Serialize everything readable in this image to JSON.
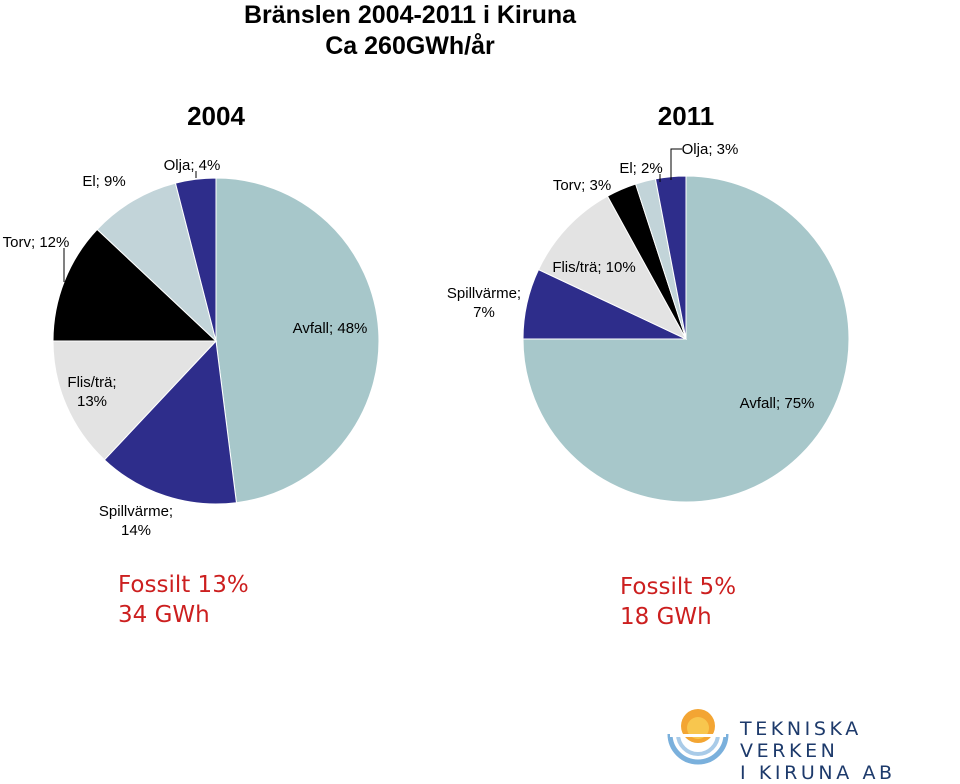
{
  "title": {
    "line1": "Bränslen 2004-2011 i Kiruna",
    "line2": "Ca 260GWh/år"
  },
  "chart_data": [
    {
      "type": "pie",
      "title": "2004",
      "slices": [
        {
          "label": "Avfall; 48%",
          "name": "Avfall",
          "value": 48,
          "color": "#a7c7ca"
        },
        {
          "label": "Spillvärme; 14%",
          "name": "Spillvärme",
          "value": 14,
          "color": "#2e2d8b"
        },
        {
          "label": "Flis/trä; 13%",
          "name": "Flis/trä",
          "value": 13,
          "color": "#e3e3e3"
        },
        {
          "label": "Torv; 12%",
          "name": "Torv",
          "value": 12,
          "color": "#000000"
        },
        {
          "label": "El; 9%",
          "name": "El",
          "value": 9,
          "color": "#c2d4d9"
        },
        {
          "label": "Olja; 4%",
          "name": "Olja",
          "value": 4,
          "color": "#2e2d8b"
        }
      ]
    },
    {
      "type": "pie",
      "title": "2011",
      "slices": [
        {
          "label": "Avfall; 75%",
          "name": "Avfall",
          "value": 75,
          "color": "#a7c7ca"
        },
        {
          "label": "Spillvärme; 7%",
          "name": "Spillvärme",
          "value": 7,
          "color": "#2e2d8b"
        },
        {
          "label": "Flis/trä; 10%",
          "name": "Flis/trä",
          "value": 10,
          "color": "#e3e3e3"
        },
        {
          "label": "Torv; 3%",
          "name": "Torv",
          "value": 3,
          "color": "#000000"
        },
        {
          "label": "El; 2%",
          "name": "El",
          "value": 2,
          "color": "#c2d4d9"
        },
        {
          "label": "Olja; 3%",
          "name": "Olja",
          "value": 3,
          "color": "#2e2d8b"
        }
      ]
    }
  ],
  "fossil": [
    {
      "line1": "Fossilt 13%",
      "line2": "34 GWh"
    },
    {
      "line1": "Fossilt 5%",
      "line2": "18 GWh"
    }
  ],
  "logo": {
    "line1": "TEKNISKA VERKEN",
    "line2": "I KIRUNA AB",
    "colors": {
      "sun": "#f3a533",
      "sun_inner": "#f8c64e",
      "water": "#7ab0dc",
      "text": "#1d3a6b"
    }
  }
}
